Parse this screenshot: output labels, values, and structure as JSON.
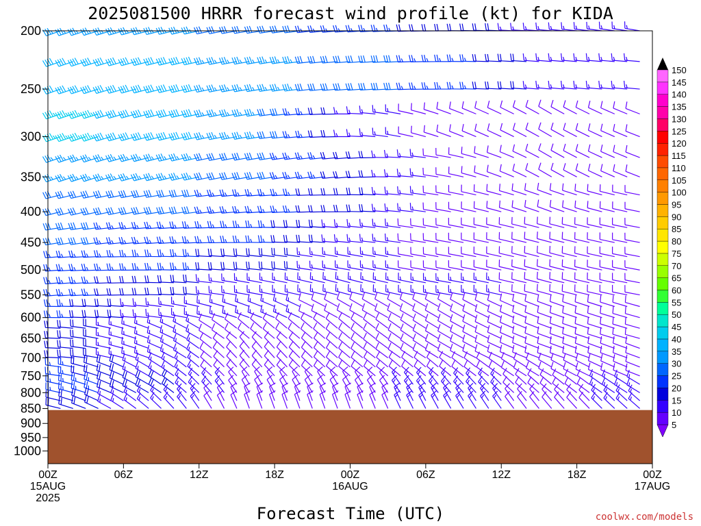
{
  "chart_data": {
    "type": "wind-barb-time-height",
    "title": "2025081500 HRRR forecast wind profile (kt) for KIDA",
    "xlabel": "Forecast Time (UTC)",
    "credit": "coolwx.com/models",
    "y_axis": {
      "scale": "log",
      "reversed": true,
      "range": [
        200,
        1050
      ],
      "tick_labels": [
        "200",
        "250",
        "300",
        "350",
        "400",
        "450",
        "500",
        "550",
        "600",
        "650",
        "700",
        "750",
        "800",
        "850",
        "900",
        "950",
        "1000"
      ]
    },
    "x_axis": {
      "range_hours": [
        0,
        48
      ],
      "ticks": [
        {
          "hour": 0,
          "line1": "00Z",
          "line2": "15AUG",
          "line3": "2025"
        },
        {
          "hour": 6,
          "line1": "06Z",
          "line2": "",
          "line3": ""
        },
        {
          "hour": 12,
          "line1": "12Z",
          "line2": "",
          "line3": ""
        },
        {
          "hour": 18,
          "line1": "18Z",
          "line2": "",
          "line3": ""
        },
        {
          "hour": 24,
          "line1": "00Z",
          "line2": "16AUG",
          "line3": ""
        },
        {
          "hour": 30,
          "line1": "06Z",
          "line2": "",
          "line3": ""
        },
        {
          "hour": 36,
          "line1": "12Z",
          "line2": "",
          "line3": ""
        },
        {
          "hour": 42,
          "line1": "18Z",
          "line2": "",
          "line3": ""
        },
        {
          "hour": 48,
          "line1": "00Z",
          "line2": "17AUG",
          "line3": ""
        }
      ]
    },
    "surface_pressure_hpa": 855,
    "terrain_color": "#a0522d",
    "colorbar": {
      "levels": [
        5,
        10,
        15,
        20,
        25,
        30,
        35,
        40,
        45,
        50,
        55,
        60,
        65,
        70,
        75,
        80,
        85,
        90,
        95,
        100,
        105,
        110,
        115,
        120,
        125,
        130,
        135,
        140,
        145,
        150
      ],
      "colors": [
        "#7f00ff",
        "#6400ff",
        "#3300ff",
        "#0000dd",
        "#0033ff",
        "#0066ff",
        "#0099ff",
        "#00b2ff",
        "#00ccee",
        "#00e6cc",
        "#00ff99",
        "#33ff33",
        "#66ff00",
        "#99ff00",
        "#ccff00",
        "#ffff00",
        "#ffe600",
        "#ffcc00",
        "#ffb200",
        "#ff9900",
        "#ff8000",
        "#ff6600",
        "#ff4c00",
        "#ff2200",
        "#ff0000",
        "#ff0066",
        "#ff00aa",
        "#ff00cc",
        "#ff33ff",
        "#ff66ff"
      ],
      "arrow_color": "#000000"
    },
    "levels_hpa": [
      200,
      225,
      250,
      275,
      300,
      325,
      350,
      375,
      400,
      425,
      450,
      475,
      500,
      525,
      550,
      575,
      600,
      625,
      650,
      675,
      700,
      725,
      750,
      775,
      800,
      825,
      850
    ],
    "forecast_hours": [
      0,
      1,
      2,
      3,
      4,
      5,
      6,
      7,
      8,
      9,
      10,
      11,
      12,
      13,
      14,
      15,
      16,
      17,
      18,
      19,
      20,
      21,
      22,
      23,
      24,
      25,
      26,
      27,
      28,
      29,
      30,
      31,
      32,
      33,
      34,
      35,
      36,
      37,
      38,
      39,
      40,
      41,
      42,
      43,
      44,
      45,
      46,
      47,
      48
    ],
    "wind_speed_kt_profile": {
      "200": [
        35,
        35,
        30,
        25,
        20,
        15,
        15
      ],
      "250": [
        40,
        40,
        35,
        30,
        25,
        15,
        15
      ],
      "300": [
        45,
        40,
        35,
        15,
        10,
        10,
        10
      ],
      "350": [
        35,
        35,
        30,
        20,
        10,
        10,
        10
      ],
      "400": [
        30,
        30,
        25,
        20,
        10,
        10,
        10
      ],
      "450": [
        30,
        25,
        25,
        15,
        10,
        10,
        10
      ],
      "500": [
        25,
        25,
        20,
        15,
        10,
        10,
        10
      ],
      "550": [
        25,
        20,
        15,
        15,
        15,
        10,
        10
      ],
      "600": [
        25,
        15,
        15,
        10,
        10,
        10,
        10
      ],
      "650": [
        20,
        15,
        10,
        10,
        10,
        10,
        10
      ],
      "700": [
        20,
        15,
        10,
        10,
        10,
        10,
        10
      ],
      "750": [
        25,
        15,
        10,
        10,
        10,
        10,
        10
      ],
      "800": [
        25,
        20,
        10,
        10,
        15,
        10,
        15
      ],
      "850": [
        20,
        15,
        10,
        10,
        15,
        10,
        15
      ]
    },
    "wind_direction_deg_profile": {
      "200": [
        250,
        255,
        260,
        265,
        270,
        275,
        280
      ],
      "250": [
        250,
        255,
        260,
        265,
        270,
        275,
        275
      ],
      "300": [
        250,
        255,
        260,
        270,
        290,
        300,
        290
      ],
      "350": [
        250,
        255,
        260,
        265,
        280,
        300,
        290
      ],
      "400": [
        255,
        260,
        265,
        270,
        280,
        290,
        280
      ],
      "450": [
        260,
        265,
        270,
        275,
        280,
        285,
        280
      ],
      "500": [
        265,
        270,
        275,
        280,
        280,
        285,
        280
      ],
      "550": [
        265,
        270,
        280,
        285,
        280,
        285,
        280
      ],
      "600": [
        270,
        275,
        290,
        300,
        300,
        290,
        285
      ],
      "650": [
        270,
        290,
        310,
        310,
        300,
        290,
        285
      ],
      "700": [
        270,
        290,
        320,
        310,
        300,
        290,
        290
      ],
      "750": [
        275,
        300,
        320,
        310,
        310,
        300,
        290
      ],
      "800": [
        280,
        300,
        330,
        330,
        320,
        310,
        300
      ],
      "850": [
        280,
        310,
        340,
        340,
        330,
        320,
        310
      ]
    },
    "profile_hours": [
      0,
      8,
      16,
      24,
      32,
      40,
      48
    ]
  }
}
